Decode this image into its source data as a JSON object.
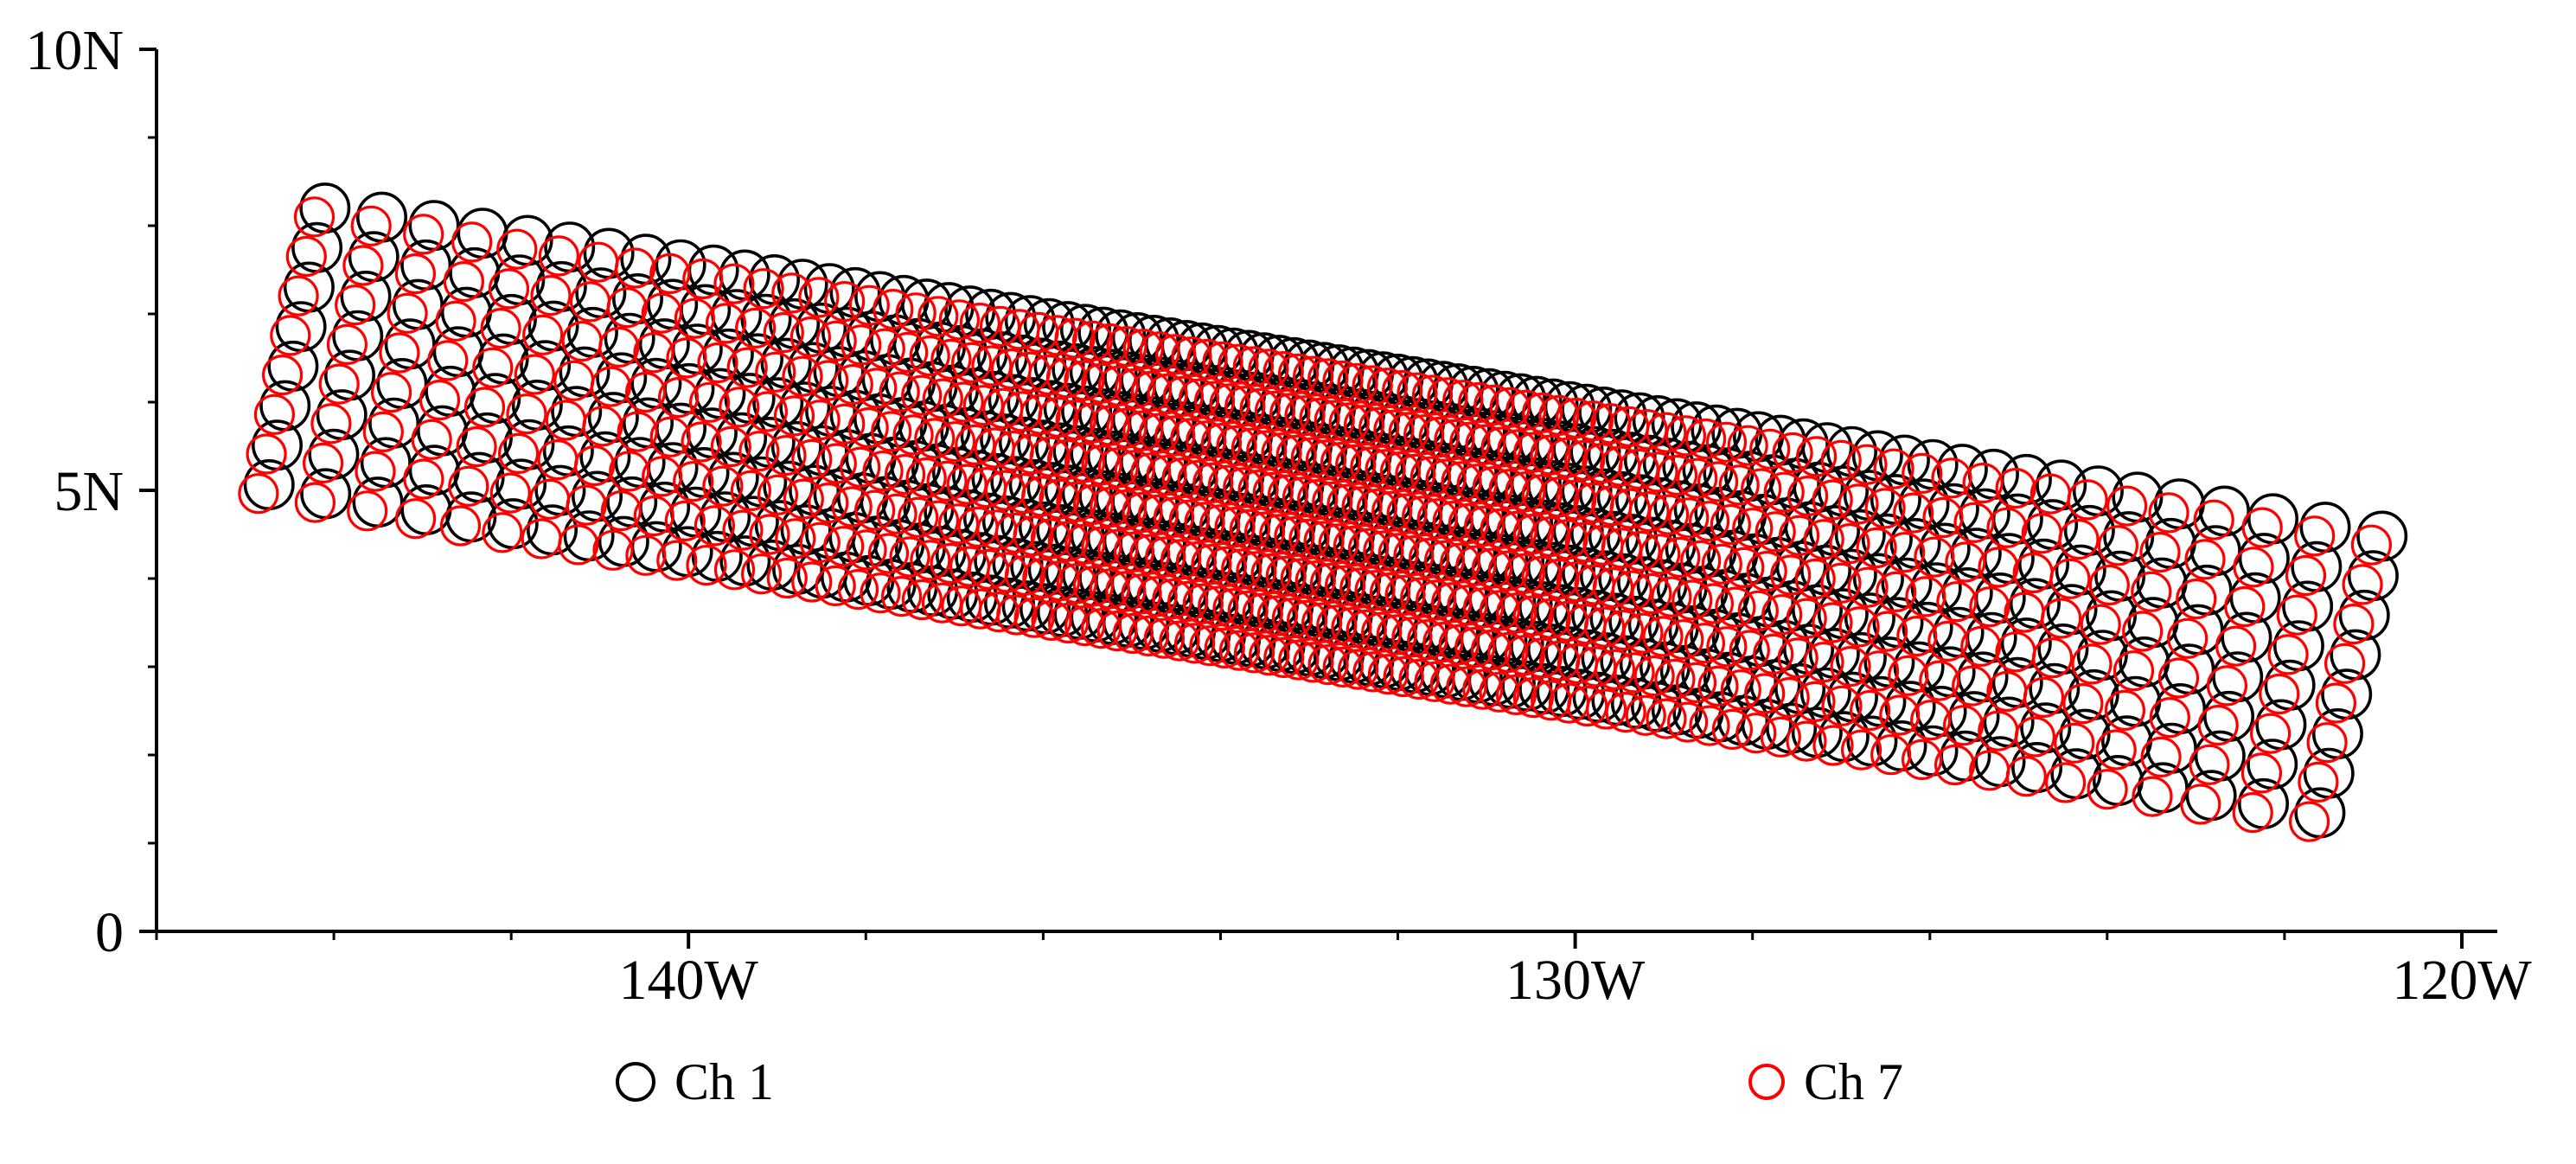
{
  "figure": {
    "background": "#ffffff",
    "axis_color": "#000000"
  },
  "chart_data": {
    "type": "scatter",
    "title": "",
    "xlabel": "",
    "ylabel": "",
    "grid": false,
    "legend_position": "below",
    "x_axis": {
      "unit": "degrees longitude West",
      "min": -146.0,
      "max": -119.6,
      "major_ticks": [
        {
          "value": -140,
          "label": "140W"
        },
        {
          "value": -130,
          "label": "130W"
        },
        {
          "value": -120,
          "label": "120W"
        }
      ],
      "minor_tick_interval": 2
    },
    "y_axis": {
      "unit": "degrees latitude North",
      "min": 0,
      "max": 10,
      "major_ticks": [
        {
          "value": 0,
          "label": "0"
        },
        {
          "value": 5,
          "label": "5N"
        },
        {
          "value": 10,
          "label": "10N"
        }
      ],
      "minor_tick_interval": 1
    },
    "series": [
      {
        "name": "Ch 1",
        "color": "#000000",
        "marker": "open-circle",
        "marker_radius_deg": 0.27,
        "stroke_width": 3.6,
        "offset_lon_deg": 0,
        "offset_lat_deg": 0
      },
      {
        "name": "Ch 7",
        "color": "#ff0000",
        "marker": "open-circle",
        "marker_radius_deg": 0.215,
        "stroke_width": 3.2,
        "offset_lon_deg": -0.12,
        "offset_lat_deg": -0.1
      }
    ],
    "scan_geometry": {
      "description": "Eight cross-track scan lines of instrument footprint centers forming a diagonal swath from upper-left (~144W, 8N) to lower-right (~121W, 1.5N); sample spacing follows tan(scan angle): dense near swath center, sparse at edges. Ch 7 footprints are slightly offset southwest of Ch 1.",
      "num_scans": 8,
      "points_per_scan": 85,
      "edge_half_angle_deg": 60,
      "first_scan_start": {
        "lon": -144.1,
        "lat": 8.2
      },
      "first_scan_end": {
        "lon": -120.9,
        "lat": 4.48
      },
      "scan_step_start": {
        "dlon": -0.09,
        "dlat": -0.448
      },
      "scan_step_end": {
        "dlon": -0.1,
        "dlat": -0.448
      }
    }
  }
}
